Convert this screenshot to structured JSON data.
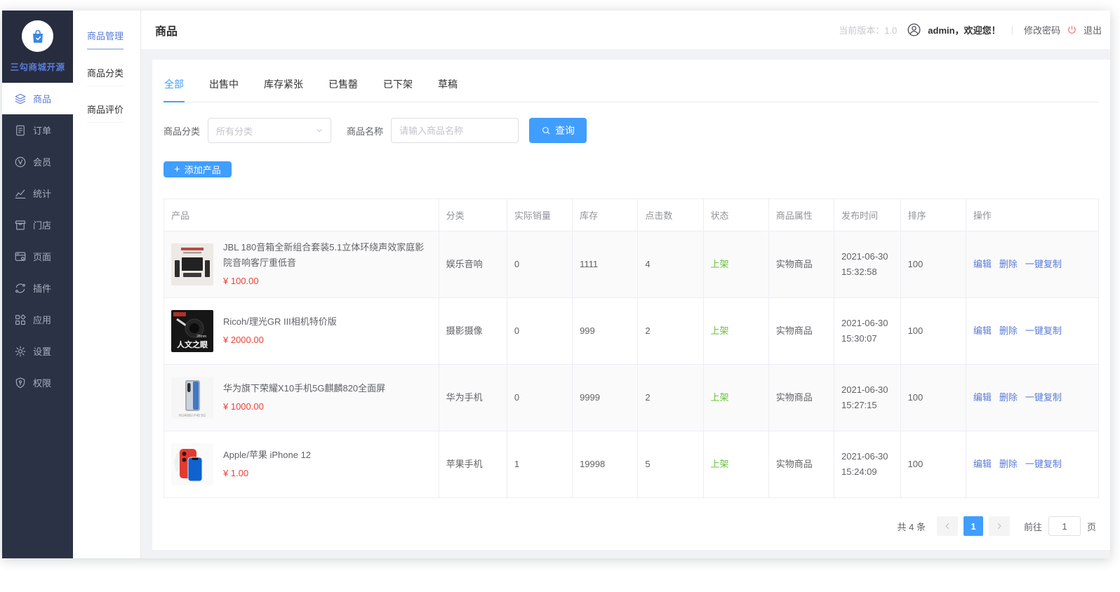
{
  "app": {
    "logo_text": "三勾商城开源",
    "page_title": "商品",
    "version_label": "当前版本：1.0",
    "user_greeting": "admin，欢迎您！",
    "divider": "|",
    "change_password_label": "修改密码",
    "logout_label": "退出"
  },
  "sidebar": {
    "items": [
      {
        "id": "goods",
        "icon": "layers",
        "label": "商品",
        "active": true
      },
      {
        "id": "orders",
        "icon": "order-doc",
        "label": "订单",
        "active": false
      },
      {
        "id": "members",
        "icon": "member-v",
        "label": "会员",
        "active": false
      },
      {
        "id": "stats",
        "icon": "line-chart",
        "label": "统计",
        "active": false
      },
      {
        "id": "store",
        "icon": "storefront",
        "label": "门店",
        "active": false
      },
      {
        "id": "pages",
        "icon": "page-window",
        "label": "页面",
        "active": false
      },
      {
        "id": "plugins",
        "icon": "plugin-ring",
        "label": "插件",
        "active": false
      },
      {
        "id": "apps",
        "icon": "app-grid",
        "label": "应用",
        "active": false
      },
      {
        "id": "settings",
        "icon": "gear",
        "label": "设置",
        "active": false
      },
      {
        "id": "permissions",
        "icon": "shield",
        "label": "权限",
        "active": false
      }
    ]
  },
  "submenu": {
    "items": [
      {
        "id": "goods-manage",
        "label": "商品管理",
        "active": true
      },
      {
        "id": "goods-category",
        "label": "商品分类",
        "active": false
      },
      {
        "id": "goods-review",
        "label": "商品评价",
        "active": false
      }
    ]
  },
  "tabs": {
    "active_index": 0,
    "items": [
      {
        "id": "all",
        "label": "全部"
      },
      {
        "id": "on-sale",
        "label": "出售中"
      },
      {
        "id": "low-stock",
        "label": "库存紧张"
      },
      {
        "id": "sold-out",
        "label": "已售罄"
      },
      {
        "id": "off-shelf",
        "label": "已下架"
      },
      {
        "id": "draft",
        "label": "草稿"
      }
    ]
  },
  "filters": {
    "category_label": "商品分类",
    "category_value": "所有分类",
    "name_label": "商品名称",
    "name_placeholder": "请输入商品名称",
    "search_button_label": "查询"
  },
  "toolbar": {
    "add_plus": "+",
    "add_product_label": "添加产品"
  },
  "table": {
    "columns": [
      "产品",
      "分类",
      "实际销量",
      "库存",
      "点击数",
      "状态",
      "商品属性",
      "发布时间",
      "排序",
      "操作"
    ],
    "action_labels": [
      "编辑",
      "删除",
      "一键复制"
    ],
    "rows": [
      {
        "image": "jbl-speaker-set",
        "title": "JBL 180音箱全新组合套装5.1立体环绕声效家庭影院音响客厅重低音",
        "price": "¥ 100.00",
        "category": "娱乐音响",
        "sales": "0",
        "stock": "1111",
        "clicks": "4",
        "status": "上架",
        "attribute": "实物商品",
        "published": "2021-06-30 15:32:58",
        "sort": "100"
      },
      {
        "image": "ricoh-gr3-camera",
        "title": "Ricoh/理光GR III相机特价版",
        "price": "¥ 2000.00",
        "category": "摄影摄像",
        "sales": "0",
        "stock": "999",
        "clicks": "2",
        "status": "上架",
        "attribute": "实物商品",
        "published": "2021-06-30 15:30:07",
        "sort": "100"
      },
      {
        "image": "huawei-honor-x10-phone",
        "title": "华为旗下荣耀X10手机5G麒麟820全面屏",
        "price": "¥ 1000.00",
        "category": "华为手机",
        "sales": "0",
        "stock": "9999",
        "clicks": "2",
        "status": "上架",
        "attribute": "实物商品",
        "published": "2021-06-30 15:27:15",
        "sort": "100"
      },
      {
        "image": "iphone-12",
        "title": "Apple/苹果 iPhone 12",
        "price": "¥ 1.00",
        "category": "苹果手机",
        "sales": "1",
        "stock": "19998",
        "clicks": "5",
        "status": "上架",
        "attribute": "实物商品",
        "published": "2021-06-30 15:24:09",
        "sort": "100"
      }
    ]
  },
  "pagination": {
    "total_label": "共 4 条",
    "current_page": "1",
    "goto_label": "前往",
    "goto_value": "1",
    "page_unit": "页"
  },
  "colors": {
    "primary_blue": "#409eff",
    "link_blue": "#5a7bd9",
    "success_green": "#67c23a",
    "price_red": "#f04134",
    "sidebar_dark": "#2b3245",
    "page_background": "#f0f2f5"
  }
}
